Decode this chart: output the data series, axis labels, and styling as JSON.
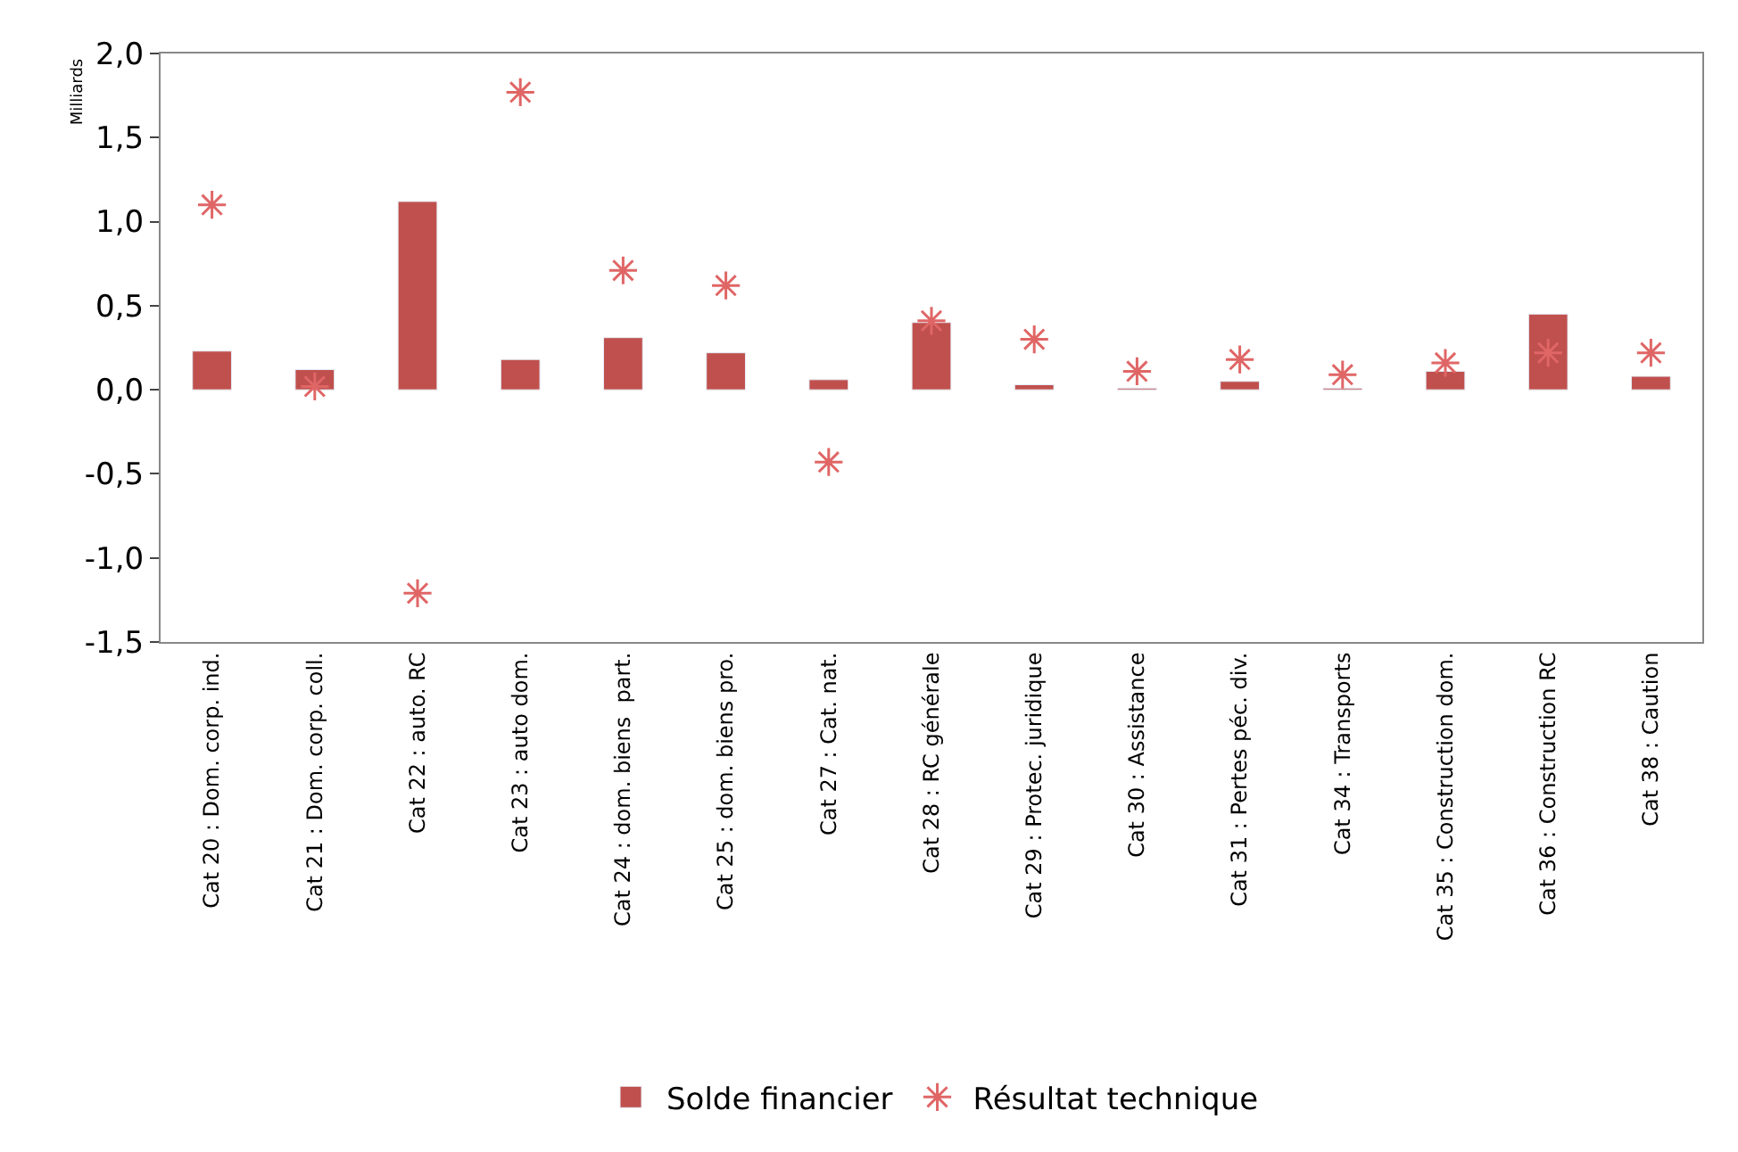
{
  "chart_data": {
    "type": "bar",
    "ylabel": "Milliards",
    "categories": [
      "Cat 20 : Dom. corp. ind.",
      "Cat 21 : Dom. corp. coll.",
      "Cat 22 : auto. RC",
      "Cat 23 : auto dom.",
      "Cat 24 : dom. biens  part.",
      "Cat 25 : dom. biens pro.",
      "Cat 27 : Cat. nat.",
      "Cat 28 : RC générale",
      "Cat 29 : Protec. juridique",
      "Cat 30 : Assistance",
      "Cat 31 : Pertes péc. div.",
      "Cat 34 : Transports",
      "Cat 35 : Construction dom.",
      "Cat 36 : Construction RC",
      "Cat 38 : Caution"
    ],
    "series": [
      {
        "name": "Solde financier",
        "color": "#c0504d",
        "values": [
          0.23,
          0.12,
          1.12,
          0.18,
          0.31,
          0.22,
          0.06,
          0.4,
          0.03,
          0.01,
          0.05,
          0.01,
          0.11,
          0.45,
          0.08
        ]
      },
      {
        "name": "Résultat technique",
        "type": "scatter",
        "marker": "cross",
        "color": "#e06666",
        "values": [
          1.1,
          0.02,
          -1.21,
          1.77,
          0.71,
          0.62,
          -0.43,
          0.41,
          0.3,
          0.11,
          0.18,
          0.09,
          0.16,
          0.22,
          0.22
        ]
      }
    ],
    "ylim": [
      -1.5,
      2.0
    ],
    "yticks": [
      {
        "value": -1.5,
        "label": "-1,5"
      },
      {
        "value": -1.0,
        "label": "-1,0"
      },
      {
        "value": -0.5,
        "label": "-0,5"
      },
      {
        "value": 0.0,
        "label": "0,0"
      },
      {
        "value": 0.5,
        "label": "0,5"
      },
      {
        "value": 1.0,
        "label": "1,0"
      },
      {
        "value": 1.5,
        "label": "1,5"
      },
      {
        "value": 2.0,
        "label": "2,0"
      }
    ],
    "legend": "bottom"
  }
}
